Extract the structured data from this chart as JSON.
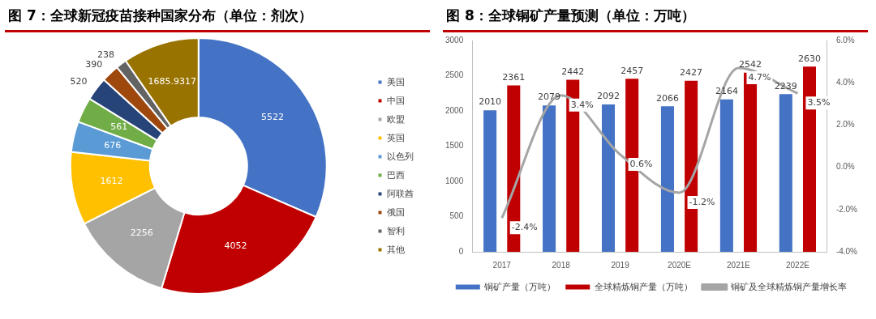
{
  "chart_data": [
    {
      "type": "donut",
      "title": "图 7：全球新冠疫苗接种国家分布（单位：剂次）",
      "categories": [
        "美国",
        "中国",
        "欧盟",
        "英国",
        "以色列",
        "巴西",
        "阿联酋",
        "俄国",
        "智利",
        "其他"
      ],
      "values": [
        5522,
        4052,
        2256,
        1612,
        676,
        561,
        520,
        390,
        238,
        1685.9317
      ],
      "colors": [
        "#4472c4",
        "#c00000",
        "#a5a5a5",
        "#ffc000",
        "#5b9bd5",
        "#70ad47",
        "#264478",
        "#9e480e",
        "#636363",
        "#997300"
      ],
      "data_labels": true,
      "legend": "right"
    },
    {
      "type": "bar",
      "title": "图 8：全球铜矿产量预测（单位：万吨）",
      "categories": [
        "2017",
        "2018",
        "2019",
        "2020E",
        "2021E",
        "2022E"
      ],
      "series": [
        {
          "name": "铜矿产量（万吨）",
          "color": "#4472c4",
          "values": [
            2010,
            2079,
            2092,
            2066,
            2164,
            2239
          ]
        },
        {
          "name": "全球精炼铜产量（万吨）",
          "color": "#c00000",
          "values": [
            2361,
            2442,
            2457,
            2427,
            2542,
            2630
          ]
        },
        {
          "name": "铜矿及全球精炼铜产量增长率",
          "type": "line",
          "axis": "y2",
          "color": "#a5a5a5",
          "values": [
            -2.4,
            3.4,
            0.6,
            -1.2,
            4.7,
            3.5
          ],
          "value_labels": [
            "-2.4%",
            "3.4%",
            "0.6%",
            "-1.2%",
            "4.7%",
            "3.5%"
          ]
        }
      ],
      "data_labels": true,
      "ylim": [
        0,
        3000
      ],
      "yticks": [
        0,
        500,
        1000,
        1500,
        2000,
        2500,
        3000
      ],
      "y2lim": [
        -4,
        6
      ],
      "y2ticks": [
        {
          "value": -4,
          "label": "-4.0%"
        },
        {
          "value": -2,
          "label": "-2.0%"
        },
        {
          "value": 0,
          "label": "0.0%"
        },
        {
          "value": 2,
          "label": "2.0%"
        },
        {
          "value": 4,
          "label": "4.0%"
        },
        {
          "value": 6,
          "label": "6.0%"
        }
      ],
      "grid": false,
      "legend": "bottom",
      "marker": "none"
    }
  ]
}
